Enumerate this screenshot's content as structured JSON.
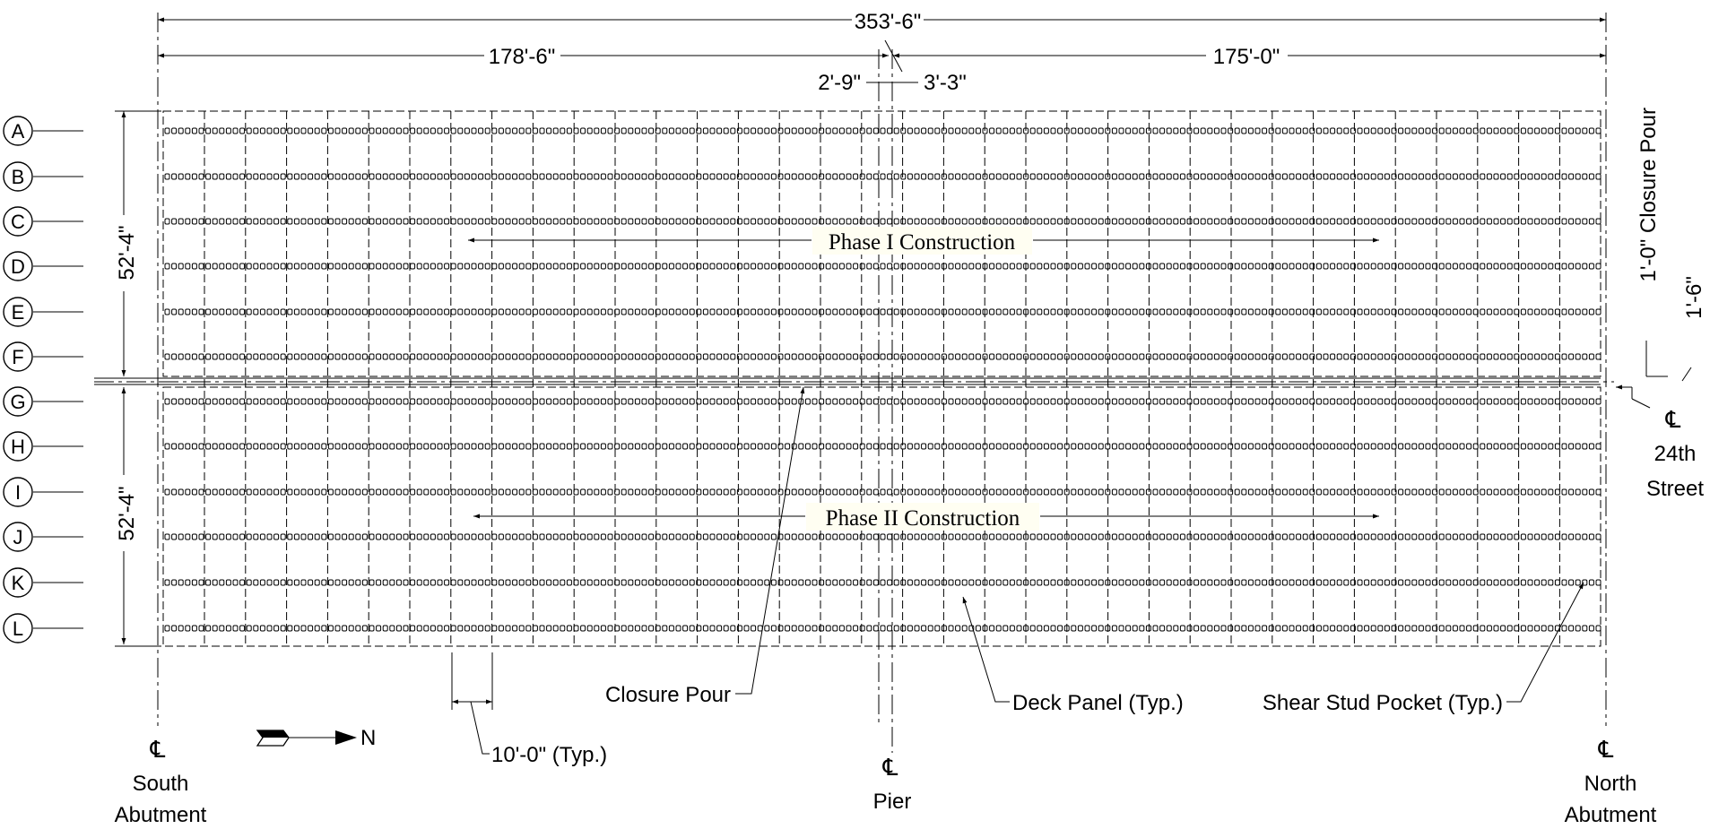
{
  "dimensions": {
    "overall": "353'-6\"",
    "south_span": "178'-6\"",
    "north_span": "175'-0\"",
    "pier_offset_south": "2'-9\"",
    "pier_offset_north": "3'-3\"",
    "phase1_width": "52'-4\"",
    "phase2_width": "52'-4\"",
    "closure_pour_width": "1'-0\" Closure Pour",
    "closure_offset": "1'-6\"",
    "panel_spacing": "10'-0\" (Typ.)"
  },
  "girder_lines": [
    "A",
    "B",
    "C",
    "D",
    "E",
    "F",
    "G",
    "H",
    "I",
    "J",
    "K",
    "L"
  ],
  "phases": {
    "phase1": "Phase I Construction",
    "phase2": "Phase II Construction"
  },
  "callouts": {
    "closure_pour": "Closure Pour",
    "deck_panel": "Deck Panel (Typ.)",
    "shear_stud_pocket": "Shear Stud Pocket (Typ.)"
  },
  "centerlines": {
    "symbol": "℄",
    "south_abutment": [
      "South",
      "Abutment"
    ],
    "pier": [
      "Pier"
    ],
    "north_abutment": [
      "North",
      "Abutment"
    ],
    "street": [
      "24th",
      "Street"
    ]
  },
  "north_arrow": "N"
}
